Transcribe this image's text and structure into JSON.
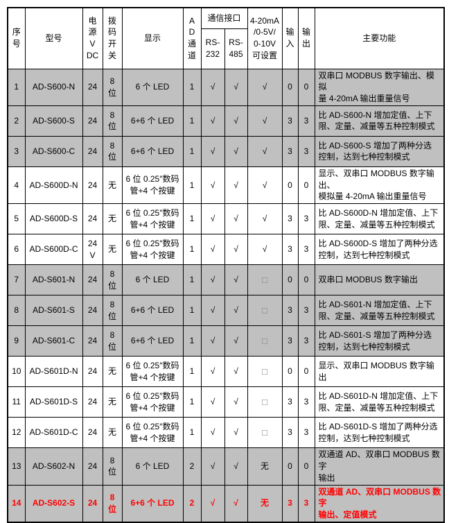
{
  "table": {
    "header": {
      "index": "序\n号",
      "model": "型号",
      "power": "电\n源\nV\nDC",
      "dip_switch": "拨\n码\n开\n关",
      "display": "显示",
      "ad_channel": "A\nD\n通\n道",
      "comm_interface": "通信接口",
      "rs232": "RS-\n232",
      "rs485": "RS-\n485",
      "analog_output": "4-20mA\n/0-5V/\n0-10V\n可设置",
      "input": "输\n入",
      "output": "输\n出",
      "functions": "主要功能"
    },
    "rows": [
      {
        "index": "1",
        "model": "AD-S600-N",
        "power": "24",
        "dip_switch": "8\n位",
        "display": "6 个 LED",
        "ad_channels": "1",
        "rs232": "√",
        "rs485": "√",
        "analog": "√",
        "inputs": "0",
        "outputs": "0",
        "functions": "双串口 MODBUS 数字输出、模拟\n量 4-20mA 输出重量信号",
        "shaded": true,
        "highlight": false
      },
      {
        "index": "2",
        "model": "AD-S600-S",
        "power": "24",
        "dip_switch": "8\n位",
        "display": "6+6 个 LED",
        "ad_channels": "1",
        "rs232": "√",
        "rs485": "√",
        "analog": "√",
        "inputs": "3",
        "outputs": "3",
        "functions": "比 AD-S600-N 增加定值、上下\n限、定量、减量等五种控制模式",
        "shaded": true,
        "highlight": false
      },
      {
        "index": "3",
        "model": "AD-S600-C",
        "power": "24",
        "dip_switch": "8\n位",
        "display": "6+6 个 LED",
        "ad_channels": "1",
        "rs232": "√",
        "rs485": "√",
        "analog": "√",
        "inputs": "3",
        "outputs": "3",
        "functions": "比 AD-S600-S 增加了两种分选\n控制，达到七种控制模式",
        "shaded": true,
        "highlight": false
      },
      {
        "index": "4",
        "model": "AD-S600D-N",
        "power": "24",
        "dip_switch": "无",
        "display": "6 位 0.25″数码\n管+4 个按键",
        "ad_channels": "1",
        "rs232": "√",
        "rs485": "√",
        "analog": "√",
        "inputs": "0",
        "outputs": "0",
        "functions": "显示、双串口 MODBUS 数字输出、\n模拟量 4-20mA 输出重量信号",
        "shaded": false,
        "highlight": false
      },
      {
        "index": "5",
        "model": "AD-S600D-S",
        "power": "24",
        "dip_switch": "无",
        "display": "6 位 0.25″数码\n管+4 个按键",
        "ad_channels": "1",
        "rs232": "√",
        "rs485": "√",
        "analog": "√",
        "inputs": "3",
        "outputs": "3",
        "functions": "比 AD-S600D-N 增加定值、上下\n限、定量、减量等五种控制模式",
        "shaded": false,
        "highlight": false
      },
      {
        "index": "6",
        "model": "AD-S600D-C",
        "power": "24\nV",
        "dip_switch": "无",
        "display": "6 位 0.25″数码\n管+4 个按键",
        "ad_channels": "1",
        "rs232": "√",
        "rs485": "√",
        "analog": "√",
        "inputs": "3",
        "outputs": "3",
        "functions": "比 AD-S600D-S 增加了两种分选\n控制，达到七种控制模式",
        "shaded": false,
        "highlight": false
      },
      {
        "index": "7",
        "model": "AD-S601-N",
        "power": "24",
        "dip_switch": "8\n位",
        "display": "6 个 LED",
        "ad_channels": "1",
        "rs232": "√",
        "rs485": "√",
        "analog": "□",
        "inputs": "0",
        "outputs": "0",
        "functions": "双串口 MODBUS 数字输出",
        "shaded": true,
        "highlight": false
      },
      {
        "index": "8",
        "model": "AD-S601-S",
        "power": "24",
        "dip_switch": "8\n位",
        "display": "6+6 个 LED",
        "ad_channels": "1",
        "rs232": "√",
        "rs485": "√",
        "analog": "□",
        "inputs": "3",
        "outputs": "3",
        "functions": "比 AD-S601-N 增加定值、上下\n限、定量、减量等五种控制模式",
        "shaded": true,
        "highlight": false
      },
      {
        "index": "9",
        "model": "AD-S601-C",
        "power": "24",
        "dip_switch": "8\n位",
        "display": "6+6 个 LED",
        "ad_channels": "1",
        "rs232": "√",
        "rs485": "√",
        "analog": "□",
        "inputs": "3",
        "outputs": "3",
        "functions": "比 AD-S601-S 增加了两种分选\n控制，达到七种控制模式",
        "shaded": true,
        "highlight": false
      },
      {
        "index": "10",
        "model": "AD-S601D-N",
        "power": "24",
        "dip_switch": "无",
        "display": "6 位 0.25″数码\n管+4 个按键",
        "ad_channels": "1",
        "rs232": "√",
        "rs485": "√",
        "analog": "□",
        "inputs": "0",
        "outputs": "0",
        "functions": "显示、双串口 MODBUS 数字输出",
        "shaded": false,
        "highlight": false
      },
      {
        "index": "11",
        "model": "AD-S601D-S",
        "power": "24",
        "dip_switch": "无",
        "display": "6 位 0.25″数码\n管+4 个按键",
        "ad_channels": "1",
        "rs232": "√",
        "rs485": "√",
        "analog": "□",
        "inputs": "3",
        "outputs": "3",
        "functions": "比 AD-S601D-N 增加定值、上下\n限、定量、减量等五种控制模式",
        "shaded": false,
        "highlight": false
      },
      {
        "index": "12",
        "model": "AD-S601D-C",
        "power": "24",
        "dip_switch": "无",
        "display": "6 位 0.25″数码\n管+4 个按键",
        "ad_channels": "1",
        "rs232": "√",
        "rs485": "√",
        "analog": "□",
        "inputs": "3",
        "outputs": "3",
        "functions": "比 AD-S601D-S 增加了两种分选\n控制，达到七种控制模式",
        "shaded": false,
        "highlight": false
      },
      {
        "index": "13",
        "model": "AD-S602-N",
        "power": "24",
        "dip_switch": "8\n位",
        "display": "6 个 LED",
        "ad_channels": "2",
        "rs232": "√",
        "rs485": "√",
        "analog": "无",
        "inputs": "0",
        "outputs": "0",
        "functions": "双通道 AD、双串口 MODBUS 数字\n输出",
        "shaded": true,
        "highlight": false
      },
      {
        "index": "14",
        "model": "AD-S602-S",
        "power": "24",
        "dip_switch": "8\n位",
        "display": "6+6 个 LED",
        "ad_channels": "2",
        "rs232": "√",
        "rs485": "√",
        "analog": "无",
        "inputs": "3",
        "outputs": "3",
        "functions": "双通道 AD、双串口 MODBUS 数字\n输出、定值模式",
        "shaded": true,
        "highlight": true
      }
    ]
  },
  "colors": {
    "shaded_row": "#c0c0c0",
    "highlight_text": "#ff0000",
    "border": "#000000",
    "box_glyph": "#808080"
  }
}
